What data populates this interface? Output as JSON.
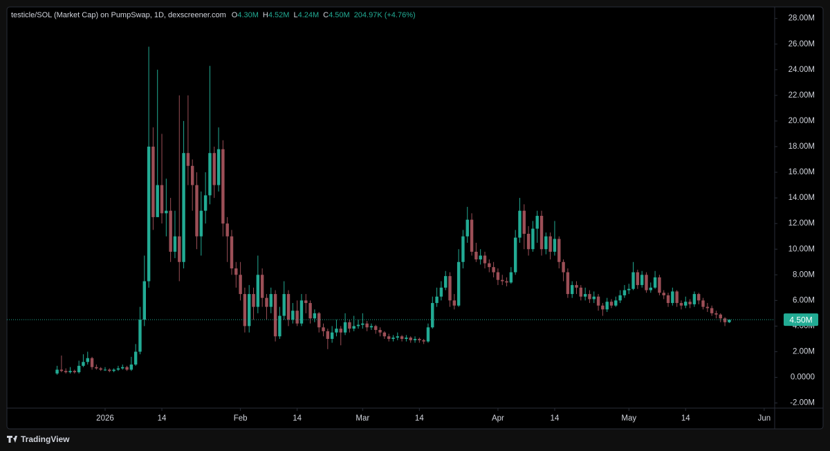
{
  "chart_data": {
    "type": "candlestick",
    "title": "testicle/SOL (Market Cap) on PumpSwap, 1D, dexscreener.com",
    "ohlc_legend": [
      {
        "key": "O",
        "value": "4.30M"
      },
      {
        "key": "H",
        "value": "4.52M"
      },
      {
        "key": "L",
        "value": "4.24M"
      },
      {
        "key": "C",
        "value": "4.50M"
      }
    ],
    "change": "204.97K (+4.76%)",
    "watermark": "TradingView",
    "up_color": "#22ab94",
    "down_color": "#9c4f57",
    "grid": false,
    "x": [
      -11,
      -10,
      -9,
      -8,
      -7,
      -6,
      -5,
      -4,
      -3,
      -2,
      -1,
      0,
      1,
      2,
      3,
      4,
      5,
      6,
      7,
      8,
      9,
      10,
      11,
      12,
      13,
      14,
      15,
      16,
      17,
      18,
      19,
      20,
      21,
      22,
      23,
      24,
      25,
      26,
      27,
      28,
      29,
      30,
      31,
      32,
      33,
      34,
      35,
      36,
      37,
      38,
      39,
      40,
      41,
      42,
      43,
      44,
      45,
      46,
      47,
      48,
      49,
      50,
      51,
      52,
      53,
      54,
      55,
      56,
      57,
      58,
      59,
      60,
      61,
      62,
      63,
      64,
      65,
      66,
      67,
      68,
      69,
      70,
      71,
      72,
      73,
      74,
      75,
      76,
      77,
      78,
      79,
      80,
      81,
      82,
      83,
      84,
      85,
      86,
      87,
      88,
      89,
      90,
      91,
      92,
      93,
      94,
      95,
      96,
      97,
      98,
      99,
      100,
      101,
      102,
      103,
      104,
      105,
      106,
      107,
      108,
      109,
      110,
      111,
      112,
      113,
      114,
      115,
      116,
      117,
      118,
      119,
      120,
      121,
      122,
      123,
      124,
      125,
      126,
      127,
      128,
      129,
      130,
      131,
      132,
      133,
      134,
      135,
      136,
      137,
      138,
      139,
      140,
      141,
      142,
      143
    ],
    "open": [
      0.3,
      0.6,
      0.5,
      0.4,
      0.5,
      0.4,
      0.9,
      1.2,
      1.5,
      0.8,
      0.7,
      0.6,
      0.6,
      0.5,
      0.6,
      0.7,
      0.8,
      0.6,
      1.0,
      2.0,
      4.5,
      7.5,
      18,
      12.5,
      15,
      12.8,
      13,
      9.8,
      11,
      9,
      17.5,
      16.5,
      15,
      11,
      13,
      14.2,
      17.5,
      15,
      17.8,
      12,
      11,
      8.5,
      8,
      6.5,
      4,
      6.5,
      5.5,
      8,
      6.2,
      5.5,
      6.5,
      3.2,
      4.8,
      6.5,
      4.5,
      5.2,
      4.2,
      6,
      5.8,
      4.6,
      5,
      3.9,
      3.6,
      3.0,
      3.5,
      3.8,
      3.5,
      4.3,
      3.8,
      4.0,
      4.1,
      4.2,
      3.9,
      4.0,
      3.7,
      3.5,
      3.2,
      3.0,
      3.1,
      3.2,
      3.0,
      3.1,
      2.9,
      3.0,
      2.9,
      2.8,
      3.9,
      5.8,
      6.3,
      7.0,
      7.9,
      6.0,
      5.6,
      9.0,
      11.0,
      12.3,
      9.8,
      9.2,
      9.5,
      8.9,
      8.6,
      8.2,
      7.6,
      7.5,
      7.4,
      8.2,
      10.9,
      13.0,
      11.2,
      10.0,
      11.6,
      12.6,
      10.0,
      11.0,
      9.8,
      10.8,
      9.0,
      8.2,
      6.5,
      7.2,
      7.0,
      6.3,
      6.5,
      6.1,
      6.3,
      5.6,
      5.3,
      5.9,
      5.6,
      6.0,
      6.4,
      6.8,
      6.9,
      8.2,
      7.2,
      8.0,
      6.8,
      7.0,
      7.8,
      6.6,
      6.4,
      5.8,
      6.7,
      5.8,
      5.6,
      5.9,
      5.7,
      6.5,
      6.0,
      5.5,
      5.4,
      5.0,
      4.9,
      4.6,
      4.3
    ],
    "high": [
      0.9,
      1.7,
      0.7,
      0.8,
      0.6,
      1.3,
      1.8,
      2.0,
      1.6,
      1.0,
      0.8,
      0.8,
      0.7,
      0.7,
      0.9,
      1.0,
      0.9,
      1.6,
      2.6,
      5.5,
      9.5,
      25.8,
      19.5,
      24,
      19,
      15.5,
      14,
      13,
      22,
      20,
      22,
      17,
      16,
      14.5,
      16,
      24.3,
      18,
      19.5,
      18.5,
      12.5,
      11.5,
      9,
      9,
      7,
      7.2,
      7,
      9.5,
      8.5,
      6.5,
      7,
      6.8,
      5.5,
      7.5,
      6.8,
      5.8,
      6,
      6.5,
      6.5,
      6,
      5.3,
      5.1,
      4.2,
      3.8,
      4,
      4.5,
      4,
      5,
      4.5,
      4.8,
      4.5,
      5,
      4.4,
      4.2,
      4.1,
      3.9,
      3.6,
      3.4,
      3.3,
      3.5,
      3.3,
      3.3,
      3.2,
      3.2,
      3.1,
      3.0,
      4.2,
      6.3,
      7,
      7.5,
      8.3,
      8.2,
      6.5,
      10,
      11.5,
      13.3,
      12.8,
      10.5,
      10,
      9.8,
      9.2,
      9,
      8.5,
      8,
      7.8,
      8.6,
      11.5,
      14,
      13.5,
      11.8,
      12.2,
      13,
      13,
      11.3,
      11.3,
      12.2,
      11,
      9.2,
      8.5,
      7.5,
      7.5,
      7.2,
      7,
      6.8,
      6.7,
      6.5,
      5.8,
      6.2,
      6.1,
      6.3,
      6.8,
      7.2,
      7.3,
      9,
      8.4,
      8.3,
      8.2,
      7.4,
      8.3,
      8,
      6.8,
      6.6,
      7,
      6.8,
      6,
      6.3,
      6.1,
      6.7,
      6.6,
      6.2,
      5.8,
      5.6,
      5.2,
      5.0,
      4.7,
      4.52
    ],
    "low": [
      0.2,
      0.4,
      0.3,
      0.3,
      0.3,
      0.3,
      0.8,
      1.0,
      0.6,
      0.6,
      0.5,
      0.5,
      0.4,
      0.4,
      0.5,
      0.6,
      0.5,
      0.5,
      0.9,
      1.8,
      4.0,
      7,
      11.5,
      12.5,
      12,
      11,
      9,
      9.3,
      7.5,
      8.5,
      15,
      13,
      10,
      9.5,
      12,
      13.5,
      14,
      14.5,
      11,
      9,
      8,
      7,
      6,
      3.5,
      3.5,
      4.5,
      5,
      5.5,
      4.5,
      5,
      2.8,
      3,
      4.5,
      4,
      4.2,
      4,
      4,
      5,
      4.2,
      4.3,
      3.5,
      3.2,
      2.2,
      2.7,
      3.2,
      2.5,
      3.3,
      3.5,
      3.6,
      3.8,
      3.8,
      3.6,
      3.7,
      3.4,
      3.2,
      3.0,
      2.8,
      2.8,
      2.9,
      2.8,
      2.8,
      2.7,
      2.7,
      2.7,
      2.6,
      2.7,
      3.8,
      5.5,
      6,
      6.8,
      5.5,
      5.3,
      5.5,
      8.5,
      10.5,
      9.5,
      9,
      8.8,
      8.5,
      8.2,
      7.8,
      7.2,
      7.2,
      7.1,
      7.3,
      8,
      10.5,
      10,
      9.5,
      9.8,
      10.5,
      9.5,
      9.6,
      9.2,
      9.5,
      8.5,
      7.5,
      6.2,
      6.2,
      6.5,
      6,
      6,
      5.8,
      5.8,
      5.2,
      4.8,
      5.1,
      5.4,
      5.5,
      5.8,
      6.2,
      6.5,
      6.8,
      6.9,
      7,
      6.6,
      6.6,
      6.9,
      6.4,
      6.1,
      5.5,
      5.6,
      5.5,
      5.3,
      5.4,
      5.4,
      5.5,
      5.7,
      5.3,
      5.1,
      4.8,
      4.6,
      4.3,
      4.0,
      4.24
    ],
    "close": [
      0.6,
      0.5,
      0.4,
      0.5,
      0.4,
      0.9,
      1.2,
      1.5,
      0.8,
      0.7,
      0.6,
      0.6,
      0.5,
      0.6,
      0.7,
      0.8,
      0.6,
      1.0,
      2.0,
      4.5,
      7.5,
      18,
      12.5,
      15,
      12.8,
      13,
      9.8,
      11,
      9,
      17.5,
      16.5,
      15,
      11,
      13,
      14.2,
      17.5,
      15,
      17.8,
      12,
      11,
      8.5,
      8,
      6.5,
      4,
      6.5,
      5.5,
      8,
      6.2,
      5.5,
      6.5,
      3.2,
      4.8,
      6.5,
      4.5,
      5.2,
      4.2,
      6,
      5.8,
      4.6,
      5,
      3.9,
      3.6,
      3.0,
      3.5,
      3.8,
      3.5,
      4.3,
      3.8,
      4.0,
      4.1,
      4.2,
      3.9,
      4.0,
      3.7,
      3.5,
      3.2,
      3.0,
      3.1,
      3.2,
      3.0,
      3.1,
      2.9,
      3.0,
      2.9,
      2.8,
      3.9,
      5.8,
      6.3,
      7.0,
      7.9,
      6.0,
      5.6,
      9.0,
      11.0,
      12.3,
      9.8,
      9.2,
      9.5,
      8.9,
      8.6,
      8.2,
      7.6,
      7.5,
      7.4,
      8.2,
      10.9,
      13.0,
      11.2,
      10.0,
      11.6,
      12.6,
      10.0,
      11.0,
      9.8,
      10.8,
      9.0,
      8.2,
      6.5,
      7.2,
      7.0,
      6.3,
      6.5,
      6.1,
      6.3,
      5.6,
      5.3,
      5.9,
      5.6,
      6.0,
      6.4,
      6.8,
      6.9,
      8.2,
      7.2,
      8.0,
      6.8,
      7.0,
      7.8,
      6.6,
      6.4,
      5.8,
      6.7,
      5.8,
      5.6,
      5.9,
      5.7,
      6.5,
      6.0,
      5.5,
      5.4,
      5.0,
      4.9,
      4.6,
      4.3,
      4.5
    ],
    "last_price": {
      "value": 4.5,
      "label": "4.50M"
    },
    "xlim": [
      -22.5,
      153.4
    ],
    "xticks": [
      {
        "value": 0,
        "label": "2026"
      },
      {
        "value": 13,
        "label": "14"
      },
      {
        "value": 31,
        "label": "Feb"
      },
      {
        "value": 44,
        "label": "14"
      },
      {
        "value": 59,
        "label": "Mar"
      },
      {
        "value": 72,
        "label": "14"
      },
      {
        "value": 90,
        "label": "Apr"
      },
      {
        "value": 103,
        "label": "14"
      },
      {
        "value": 120,
        "label": "May"
      },
      {
        "value": 133,
        "label": "14"
      },
      {
        "value": 151,
        "label": "Jun"
      }
    ],
    "ylim": [
      -2.4,
      28.9
    ],
    "yticks": [
      {
        "value": -2,
        "label": "-2.00M"
      },
      {
        "value": 0,
        "label": "0.0000"
      },
      {
        "value": 2,
        "label": "2.00M"
      },
      {
        "value": 4,
        "label": "4.00M"
      },
      {
        "value": 6,
        "label": "6.00M"
      },
      {
        "value": 8,
        "label": "8.00M"
      },
      {
        "value": 10,
        "label": "10.00M"
      },
      {
        "value": 12,
        "label": "12.00M"
      },
      {
        "value": 14,
        "label": "14.00M"
      },
      {
        "value": 16,
        "label": "16.00M"
      },
      {
        "value": 18,
        "label": "18.00M"
      },
      {
        "value": 20,
        "label": "20.00M"
      },
      {
        "value": 22,
        "label": "22.00M"
      },
      {
        "value": 24,
        "label": "24.00M"
      },
      {
        "value": 26,
        "label": "26.00M"
      },
      {
        "value": 28,
        "label": "28.00M"
      }
    ]
  }
}
